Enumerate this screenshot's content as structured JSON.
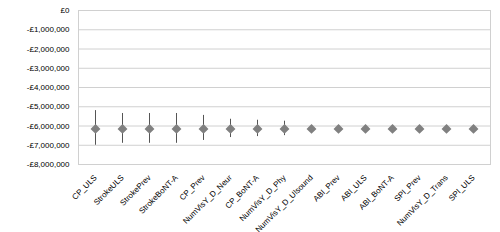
{
  "chart_data": {
    "type": "scatter",
    "categories": [
      "CP_ULS",
      "StrokeULS",
      "StrokePrev",
      "StrokeBoNT-A",
      "CP_Prev",
      "NumVisY_D_Neur",
      "CP_BoNT-A",
      "NumVisY_D_Phy",
      "NumVisY_D_Ulsound",
      "ABI_Prev",
      "ABI_ULS",
      "ABI_BoNT-A",
      "SPI_Prev",
      "NumVisY_D_Trans",
      "SPI_ULS"
    ],
    "values": [
      -6150000,
      -6150000,
      -6150000,
      -6150000,
      -6150000,
      -6150000,
      -6150000,
      -6150000,
      -6150000,
      -6150000,
      -6150000,
      -6150000,
      -6150000,
      -6150000,
      -6150000
    ],
    "error_low": [
      -7000000,
      -6900000,
      -6900000,
      -6900000,
      -6750000,
      -6600000,
      -6550000,
      -6500000,
      -6150000,
      -6150000,
      -6150000,
      -6150000,
      -6150000,
      -6150000,
      -6150000
    ],
    "error_high": [
      -5200000,
      -5350000,
      -5350000,
      -5350000,
      -5450000,
      -5650000,
      -5700000,
      -5750000,
      -6150000,
      -6150000,
      -6150000,
      -6150000,
      -6150000,
      -6150000,
      -6150000
    ],
    "color": "#808080",
    "marker": "diamond",
    "ylim": [
      -8000000,
      0
    ],
    "yticks": [
      {
        "value": 0,
        "label": "£0"
      },
      {
        "value": -1000000,
        "label": "-£1,000,000"
      },
      {
        "value": -2000000,
        "label": "-£2,000,000"
      },
      {
        "value": -3000000,
        "label": "-£3,000,000"
      },
      {
        "value": -4000000,
        "label": "-£4,000,000"
      },
      {
        "value": -5000000,
        "label": "-£5,000,000"
      },
      {
        "value": -6000000,
        "label": "-£6,000,000"
      },
      {
        "value": -7000000,
        "label": "-£7,000,000"
      },
      {
        "value": -8000000,
        "label": "-£8,000,000"
      }
    ],
    "grid": true
  }
}
